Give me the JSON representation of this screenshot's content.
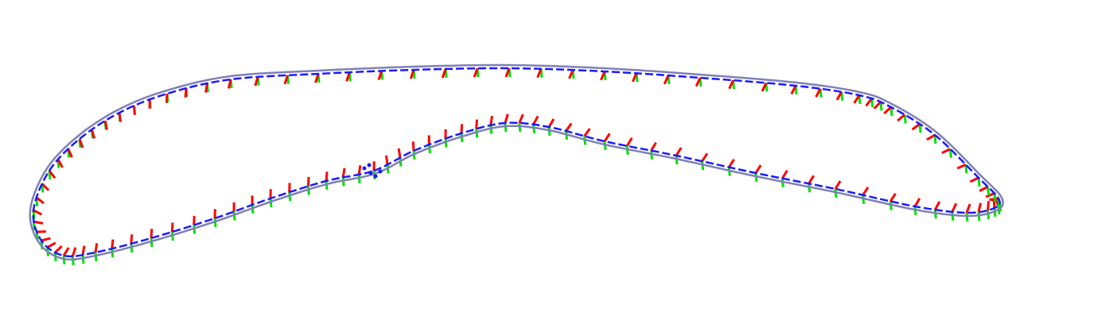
{
  "scene": {
    "background": "#ffffff",
    "colors": {
      "frame_x_axis": "#ff0000",
      "frame_y_axis": "#00e000",
      "frame_z_axis": "#0000ff",
      "estimated_path": "#8080b8",
      "trajectory_line": "#1a1aff"
    }
  }
}
